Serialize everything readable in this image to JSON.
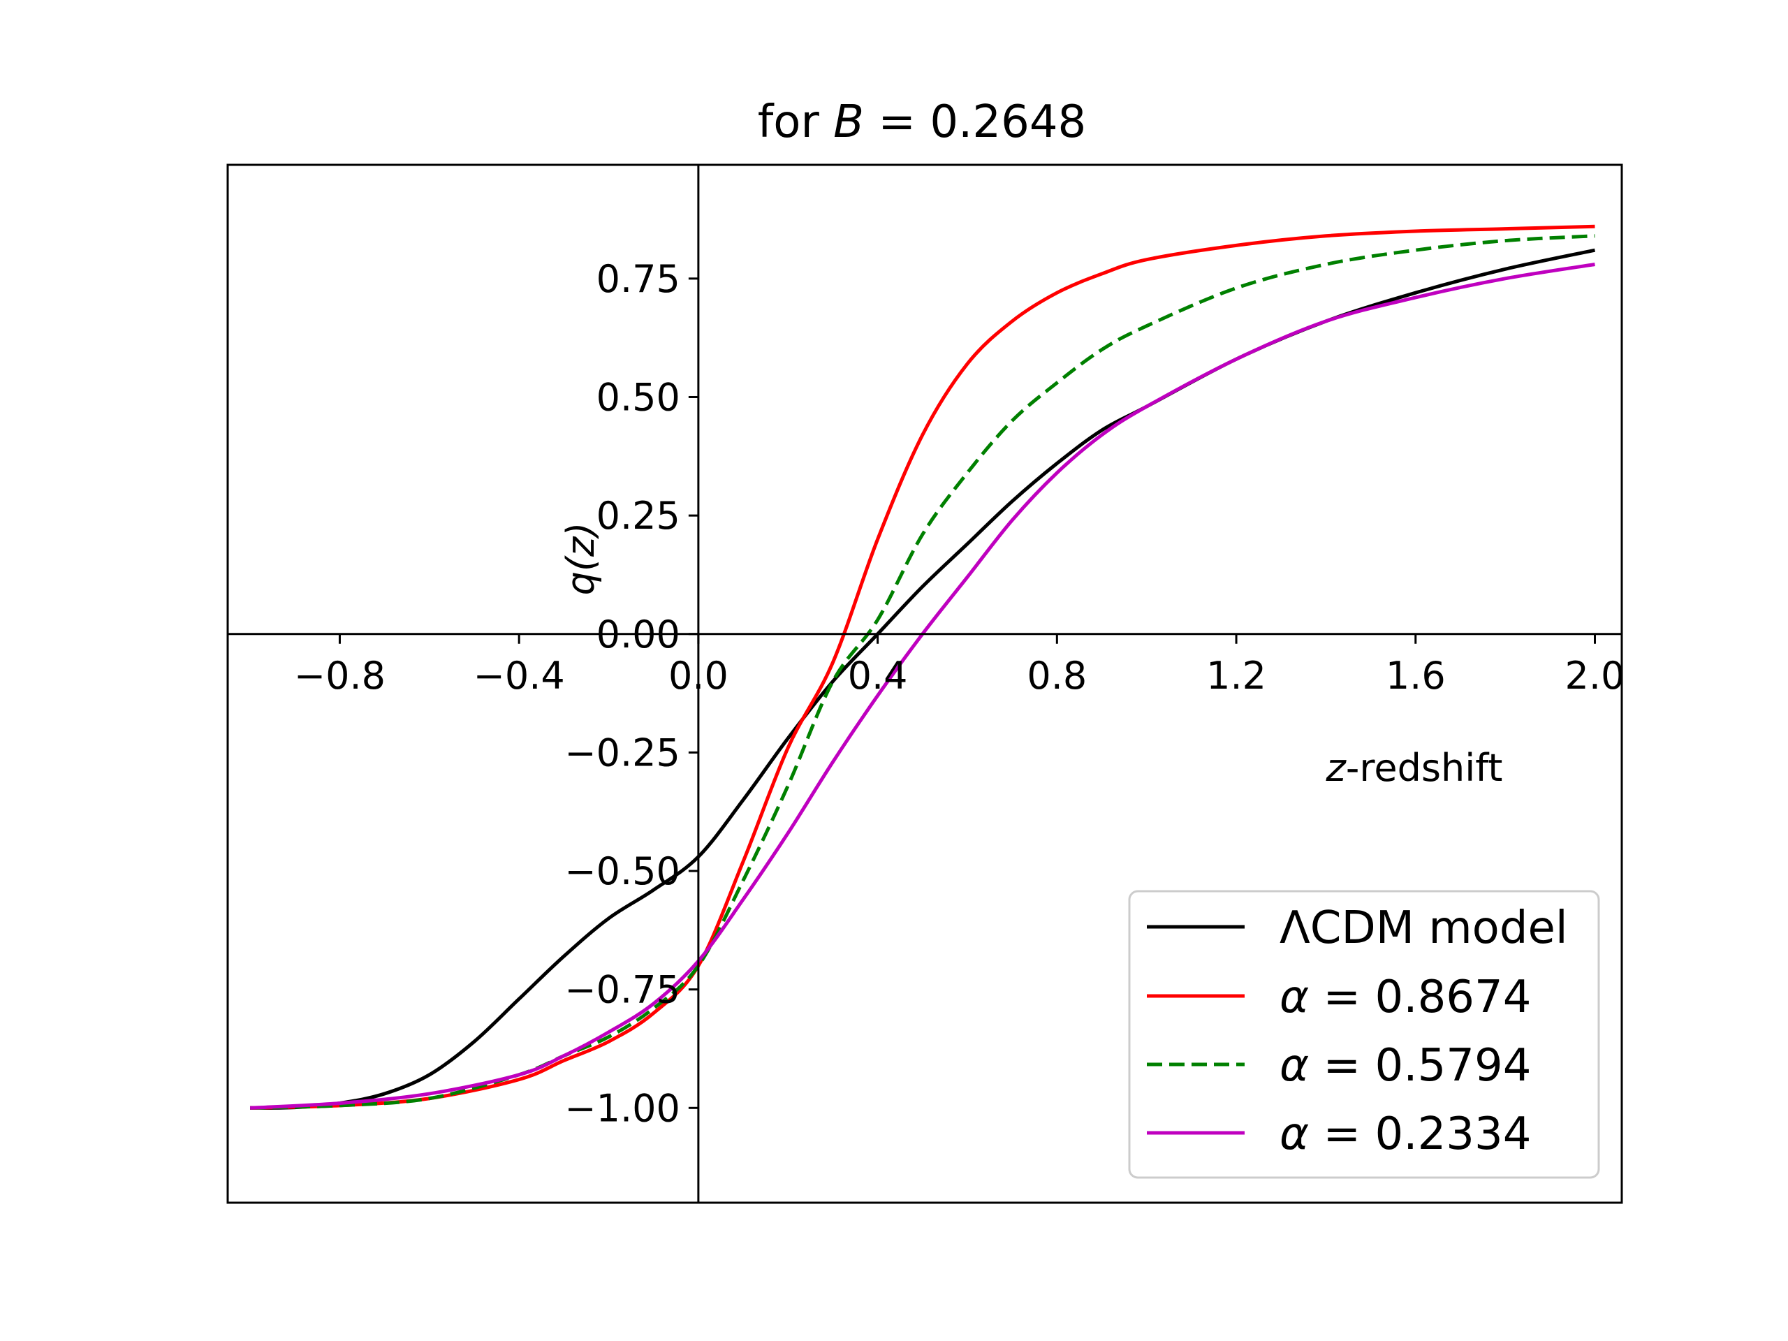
{
  "chart_data": {
    "type": "line",
    "title_prefix": "for ",
    "title_var": "B",
    "title_suffix": " = 0.2648",
    "xlabel_var": "z",
    "xlabel_rest": "-redshift",
    "ylabel": "q(z)",
    "xlim": [
      -1.05,
      2.06
    ],
    "ylim": [
      -1.2,
      0.99
    ],
    "x_ticks": [
      -0.8,
      -0.4,
      0.0,
      0.4,
      0.8,
      1.2,
      1.6,
      2.0
    ],
    "x_tick_labels": [
      "−0.8",
      "−0.4",
      "0.0",
      "0.4",
      "0.8",
      "1.2",
      "1.6",
      "2.0"
    ],
    "y_ticks": [
      -1.0,
      -0.75,
      -0.5,
      -0.25,
      0.0,
      0.25,
      0.5,
      0.75
    ],
    "y_tick_labels": [
      "−1.00",
      "−0.75",
      "−0.50",
      "−0.25",
      "0.00",
      "0.25",
      "0.50",
      "0.75"
    ],
    "legend_position": "lower-right",
    "series": [
      {
        "name": "ΛCDM model",
        "label_prefix": "",
        "label_rest": "ΛCDM model",
        "color": "#000000",
        "dash": "solid",
        "x": [
          -1.0,
          -0.9,
          -0.8,
          -0.7,
          -0.6,
          -0.5,
          -0.4,
          -0.3,
          -0.2,
          -0.1,
          0.0,
          0.1,
          0.2,
          0.3,
          0.4,
          0.5,
          0.6,
          0.7,
          0.8,
          0.9,
          1.0,
          1.2,
          1.4,
          1.6,
          1.8,
          2.0
        ],
        "y": [
          -1.0,
          -0.999,
          -0.99,
          -0.97,
          -0.93,
          -0.86,
          -0.77,
          -0.68,
          -0.6,
          -0.54,
          -0.47,
          -0.35,
          -0.22,
          -0.1,
          0.0,
          0.1,
          0.19,
          0.28,
          0.36,
          0.43,
          0.48,
          0.58,
          0.66,
          0.72,
          0.77,
          0.81
        ]
      },
      {
        "name": "α = 0.8674",
        "label_prefix": "α",
        "label_rest": " = 0.8674",
        "color": "#ff0000",
        "dash": "solid",
        "x": [
          -1.0,
          -0.8,
          -0.6,
          -0.4,
          -0.3,
          -0.2,
          -0.1,
          0.0,
          0.1,
          0.2,
          0.3,
          0.4,
          0.5,
          0.6,
          0.7,
          0.8,
          0.9,
          1.0,
          1.2,
          1.4,
          1.6,
          1.8,
          2.0
        ],
        "y": [
          -1.0,
          -0.995,
          -0.98,
          -0.94,
          -0.9,
          -0.86,
          -0.8,
          -0.7,
          -0.48,
          -0.24,
          -0.06,
          0.2,
          0.42,
          0.57,
          0.66,
          0.72,
          0.76,
          0.79,
          0.82,
          0.84,
          0.85,
          0.855,
          0.86
        ]
      },
      {
        "name": "α = 0.5794",
        "label_prefix": "α",
        "label_rest": " = 0.5794",
        "color": "#008000",
        "dash": "dashed",
        "x": [
          -1.0,
          -0.8,
          -0.6,
          -0.4,
          -0.3,
          -0.2,
          -0.1,
          0.0,
          0.1,
          0.2,
          0.3,
          0.4,
          0.5,
          0.6,
          0.7,
          0.8,
          0.9,
          1.0,
          1.2,
          1.4,
          1.6,
          1.8,
          2.0
        ],
        "y": [
          -1.0,
          -0.995,
          -0.98,
          -0.93,
          -0.89,
          -0.85,
          -0.79,
          -0.7,
          -0.52,
          -0.32,
          -0.1,
          0.03,
          0.21,
          0.34,
          0.45,
          0.53,
          0.6,
          0.65,
          0.73,
          0.78,
          0.81,
          0.83,
          0.84
        ]
      },
      {
        "name": "α = 0.2334",
        "label_prefix": "α",
        "label_rest": " = 0.2334",
        "color": "#bf00bf",
        "dash": "solid",
        "x": [
          -1.0,
          -0.8,
          -0.6,
          -0.4,
          -0.3,
          -0.2,
          -0.1,
          0.0,
          0.1,
          0.2,
          0.3,
          0.4,
          0.5,
          0.6,
          0.7,
          0.8,
          0.9,
          1.0,
          1.2,
          1.4,
          1.6,
          1.8,
          2.0
        ],
        "y": [
          -1.0,
          -0.99,
          -0.97,
          -0.93,
          -0.89,
          -0.84,
          -0.78,
          -0.69,
          -0.56,
          -0.42,
          -0.27,
          -0.13,
          0.0,
          0.12,
          0.24,
          0.34,
          0.42,
          0.48,
          0.58,
          0.66,
          0.71,
          0.75,
          0.78
        ]
      }
    ]
  }
}
